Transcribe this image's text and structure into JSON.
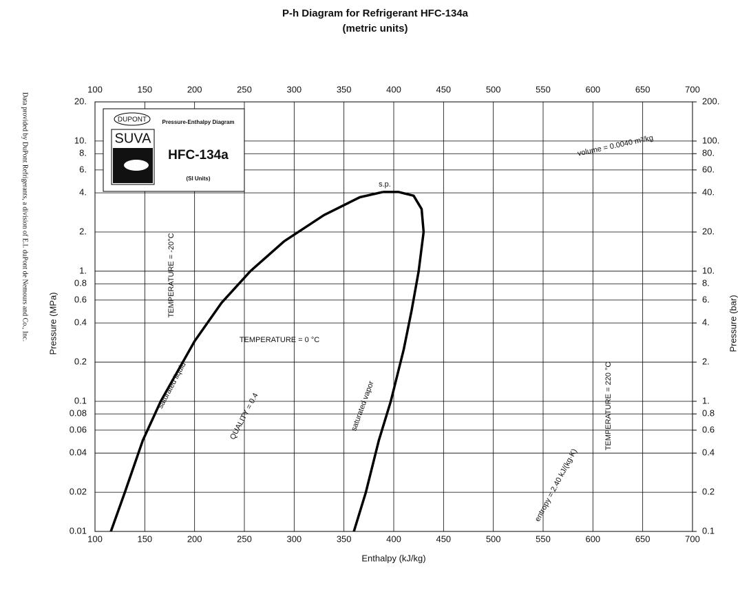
{
  "chart_data": {
    "type": "line",
    "title": "P-h Diagram for Refrigerant HFC-134a",
    "subtitle": "(metric units)",
    "x_label": "Enthalpy (kJ/kg)",
    "y_label": "Pressure (MPa)",
    "y2_label": "Pressure (bar)",
    "side_note": "Data provided by DuPont Refrigerants, a division of E.I. duPont de Nemours and Co., Inc.",
    "log_y": true,
    "grid": true,
    "xlim": [
      100,
      700
    ],
    "xticks": [
      100,
      150,
      200,
      250,
      300,
      350,
      400,
      450,
      500,
      550,
      600,
      650,
      700
    ],
    "ylim": [
      0.01,
      20
    ],
    "yticks": [
      {
        "value": 20,
        "label": "20."
      },
      {
        "value": 10,
        "label": "10."
      },
      {
        "value": 8,
        "label": "8."
      },
      {
        "value": 6,
        "label": "6."
      },
      {
        "value": 4,
        "label": "4."
      },
      {
        "value": 2,
        "label": "2."
      },
      {
        "value": 1,
        "label": "1."
      },
      0.8,
      0.6,
      0.4,
      0.2,
      0.1,
      0.08,
      0.06,
      0.04,
      0.02,
      0.01
    ],
    "y2lim": [
      0.1,
      200
    ],
    "y2ticks": [
      {
        "value": 200,
        "label": "200."
      },
      {
        "value": 100,
        "label": "100."
      },
      {
        "value": 80,
        "label": "80."
      },
      {
        "value": 60,
        "label": "60."
      },
      {
        "value": 40,
        "label": "40."
      },
      {
        "value": 20,
        "label": "20."
      },
      {
        "value": 10,
        "label": "10."
      },
      {
        "value": 8,
        "label": "8."
      },
      {
        "value": 6,
        "label": "6."
      },
      {
        "value": 4,
        "label": "4."
      },
      {
        "value": 2,
        "label": "2."
      },
      {
        "value": 1,
        "label": "1."
      },
      0.8,
      0.6,
      0.4,
      0.2,
      0.1
    ],
    "series": [
      {
        "name": "saturated liquid",
        "color": "#000000",
        "x": [
          116,
          130,
          148,
          166,
          200,
          227,
          256,
          290,
          330,
          366,
          389
        ],
        "values": [
          0.01,
          0.02,
          0.05,
          0.1,
          0.29,
          0.57,
          1.0,
          1.7,
          2.7,
          3.7,
          4.06
        ]
      },
      {
        "name": "saturated vapor",
        "color": "#000000",
        "x": [
          360,
          372,
          385,
          397,
          410,
          418,
          425,
          430,
          428,
          420,
          405,
          389
        ],
        "values": [
          0.01,
          0.02,
          0.05,
          0.1,
          0.25,
          0.5,
          1.0,
          2.0,
          3.0,
          3.8,
          4.06,
          4.06
        ]
      }
    ],
    "annotations": [
      "TEMPERATURE = 0 °C",
      "QUALITY = 0.4",
      "TEMPERATURE = -20°C",
      "TEMPERATURE = 220 °C",
      "volume = 0.0040 m³/kg",
      "entropy = 2.40 kJ/(kg·K)",
      "s.p."
    ],
    "logo": {
      "brand": "DUPONT",
      "product": "SUVA",
      "caption": "Pressure-Enthalpy Diagram",
      "refrigerant": "HFC-134a",
      "units": "(SI Units)"
    }
  }
}
